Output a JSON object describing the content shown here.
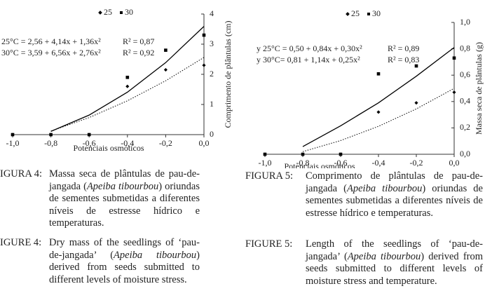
{
  "chart_data": [
    {
      "type": "scatter",
      "legend": [
        "25",
        "30"
      ],
      "annotations": [
        "25°C = 2,56 +  4,14x + 1,36x²",
        "R² = 0,87",
        "30°C = 3,59  + 6,56x + 2,76x²",
        "R² = 0,92"
      ],
      "xlabel": "Potenciais osmóticos",
      "ylabel": "Comprimento de plântulas (cm)",
      "x": [
        -1.0,
        -0.8,
        -0.6,
        -0.4,
        -0.2,
        0.0
      ],
      "xlim": [
        -1.0,
        0.0
      ],
      "xticks": [
        {
          "value": -1.0,
          "label": "-1,0"
        },
        {
          "value": -0.8,
          "label": "-0,8"
        },
        {
          "value": -0.6,
          "label": "-0,6"
        },
        {
          "value": -0.4,
          "label": "-0,4"
        },
        {
          "value": -0.2,
          "label": "-0,2"
        },
        {
          "value": 0.0,
          "label": "0,0"
        }
      ],
      "ylim": [
        0,
        4
      ],
      "yticks": [
        0,
        1,
        2,
        3,
        4
      ],
      "series": [
        {
          "name": "25",
          "color": "#000000",
          "marker": "diamond",
          "fit_style": "dotted",
          "values": [
            0,
            0,
            0,
            1.6,
            2.15,
            2.3
          ],
          "fit_values": [
            null,
            0.118,
            0.566,
            1.122,
            1.786,
            2.56
          ]
        },
        {
          "name": "30",
          "color": "#000000",
          "marker": "square",
          "fit_style": "solid",
          "values": [
            0,
            0,
            0,
            1.9,
            2.8,
            3.3
          ],
          "fit_values": [
            null,
            0.108,
            0.648,
            1.408,
            2.388,
            3.59
          ]
        }
      ]
    },
    {
      "type": "scatter",
      "legend": [
        "25",
        "30"
      ],
      "annotations": [
        "y 25°C =  0,50 + 0,84x + 0,30x²",
        "R² = 0,89",
        "y 30°C= 0,81 + 1,14x + 0,25x²",
        "R² = 0,83"
      ],
      "xlabel": "Potenciais  osmóticos",
      "ylabel": "Massa seca de plântulas (g)",
      "x": [
        -1.0,
        -0.8,
        -0.6,
        -0.4,
        -0.2,
        0.0
      ],
      "xlim": [
        -1.0,
        0.0
      ],
      "xticks": [
        {
          "value": -1.0,
          "label": "-1,0"
        },
        {
          "value": -0.8,
          "label": "-0,8"
        },
        {
          "value": -0.6,
          "label": "-0,6"
        },
        {
          "value": -0.4,
          "label": "-0,4"
        },
        {
          "value": -0.2,
          "label": "-0,2"
        },
        {
          "value": 0.0,
          "label": "0,0"
        }
      ],
      "ylim": [
        0,
        1.0
      ],
      "yticks": [
        {
          "value": 0,
          "label": "0,0"
        },
        {
          "value": 0.2,
          "label": "0,2"
        },
        {
          "value": 0.4,
          "label": "0,4"
        },
        {
          "value": 0.6,
          "label": "0,6"
        },
        {
          "value": 0.8,
          "label": "0,8"
        },
        {
          "value": 1.0,
          "label": "1,0"
        }
      ],
      "series": [
        {
          "name": "25",
          "color": "#000000",
          "marker": "diamond",
          "fit_style": "dotted",
          "values": [
            0,
            0,
            0,
            0.32,
            0.39,
            0.47
          ],
          "fit_values": [
            null,
            0.02,
            0.104,
            0.212,
            0.344,
            0.5
          ]
        },
        {
          "name": "30",
          "color": "#000000",
          "marker": "square",
          "fit_style": "solid",
          "values": [
            0,
            0,
            0,
            0.61,
            0.67,
            0.73
          ],
          "fit_values": [
            null,
            0.058,
            0.216,
            0.39,
            0.592,
            0.81
          ]
        }
      ]
    }
  ],
  "captions": [
    {
      "label": "IGURA 4:",
      "parts": [
        "Massa seca de plântulas de pau-de-jangada (",
        "Apeiba tibourbou",
        ") oriundas de sementes submetidas a diferentes níveis de estresse hídrico e temperaturas."
      ]
    },
    {
      "label": "IGURE 4:",
      "parts": [
        "Dry mass of the seedlings of ‘pau-de-jangada’ (",
        "Apeiba tibourbou",
        ") derived from seeds submitted to different levels of moisture stress."
      ]
    },
    {
      "label": "FIGURA 5:",
      "parts": [
        "Comprimento de plântulas de pau-de-jangada (",
        "Apeiba tibourbou",
        ") oriundas de sementes submetidas a diferentes níveis de estresse hídrico e temperaturas."
      ]
    },
    {
      "label": "FIGURE 5:",
      "parts": [
        "Length of the seedlings of ‘pau-de-jangada’ (",
        "Apeiba tibourbou",
        ") derived from seeds submitted to different levels of moisture stress and temperature."
      ]
    }
  ]
}
